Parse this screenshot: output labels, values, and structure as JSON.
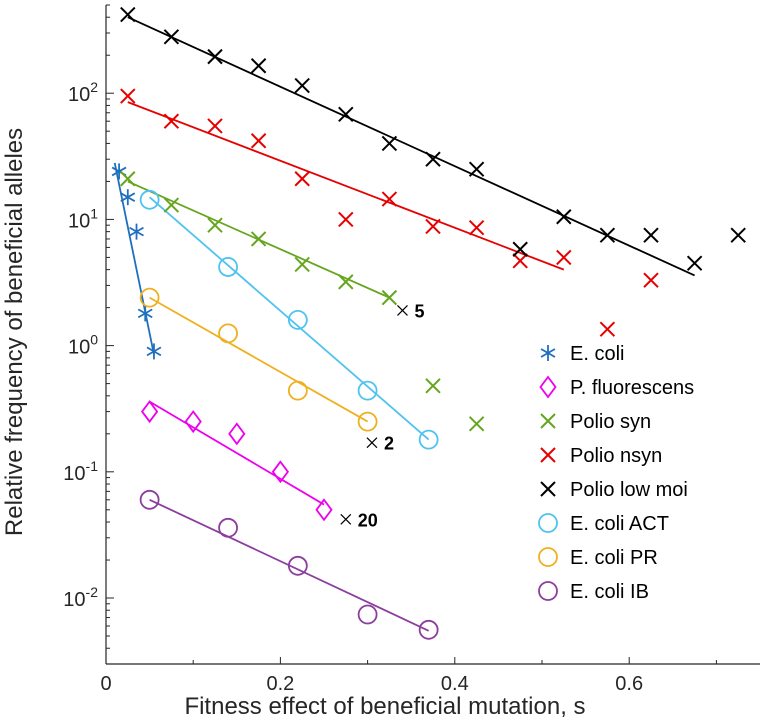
{
  "chart_data": {
    "type": "scatter",
    "xlabel": "Fitness effect of beneficial mutation, s",
    "ylabel": "Relative frequency of beneficial alleles",
    "xlim": [
      0,
      0.75
    ],
    "ylim": [
      0.003,
      500
    ],
    "yscale": "log",
    "grid": false,
    "legend_position": "bottom-right",
    "x_ticks": [
      {
        "value": 0,
        "label": "0"
      },
      {
        "value": 0.2,
        "label": "0.2"
      },
      {
        "value": 0.4,
        "label": "0.4"
      },
      {
        "value": 0.6,
        "label": "0.6"
      }
    ],
    "y_ticks": [
      {
        "value": 0.01,
        "base": "10",
        "exp": "-2"
      },
      {
        "value": 0.1,
        "base": "10",
        "exp": "-1"
      },
      {
        "value": 1,
        "base": "10",
        "exp": "0"
      },
      {
        "value": 10,
        "base": "10",
        "exp": "1"
      },
      {
        "value": 100,
        "base": "10",
        "exp": "2"
      }
    ],
    "series": [
      {
        "name": "E. coli",
        "marker": "asterisk",
        "color": "#1f6fbf",
        "x": [
          0.015,
          0.025,
          0.035,
          0.045,
          0.055
        ],
        "y": [
          24,
          15,
          8,
          1.8,
          0.9
        ],
        "fit": [
          [
            0.01,
            28
          ],
          [
            0.055,
            0.85
          ]
        ]
      },
      {
        "name": "P. fluorescens",
        "marker": "diamond",
        "color": "#ee00ee",
        "x": [
          0.05,
          0.1,
          0.15,
          0.2,
          0.25
        ],
        "y": [
          0.3,
          0.25,
          0.2,
          0.1,
          0.05
        ],
        "fit": [
          [
            0.05,
            0.36
          ],
          [
            0.25,
            0.055
          ]
        ]
      },
      {
        "name": "Polio syn",
        "marker": "x",
        "color": "#66a61e",
        "x": [
          0.025,
          0.075,
          0.125,
          0.175,
          0.225,
          0.275,
          0.325,
          0.375,
          0.425
        ],
        "y": [
          21,
          13,
          9,
          7,
          4.4,
          3.2,
          2.4,
          0.48,
          0.24
        ],
        "fit": [
          [
            0.025,
            20
          ],
          [
            0.325,
            2.4
          ]
        ]
      },
      {
        "name": "Polio nsyn",
        "marker": "x",
        "color": "#e60000",
        "x": [
          0.025,
          0.075,
          0.125,
          0.175,
          0.225,
          0.275,
          0.325,
          0.375,
          0.425,
          0.475,
          0.525,
          0.575,
          0.625
        ],
        "y": [
          95,
          60,
          55,
          42,
          21,
          10,
          14.5,
          8.8,
          8.6,
          4.7,
          5,
          1.35,
          3.3
        ],
        "fit": [
          [
            0.025,
            85
          ],
          [
            0.525,
            4.0
          ]
        ]
      },
      {
        "name": "Polio low moi",
        "marker": "x",
        "color": "#000000",
        "x": [
          0.025,
          0.075,
          0.125,
          0.175,
          0.225,
          0.275,
          0.325,
          0.375,
          0.425,
          0.475,
          0.525,
          0.575,
          0.625,
          0.675,
          0.725
        ],
        "y": [
          420,
          280,
          195,
          165,
          115,
          68,
          40,
          30,
          25,
          5.8,
          10.5,
          7.5,
          7.5,
          4.5,
          7.5
        ],
        "fit": [
          [
            0.025,
            400
          ],
          [
            0.675,
            3.6
          ]
        ]
      },
      {
        "name": "E. coli ACT",
        "marker": "circle",
        "color": "#4fc3f0",
        "x": [
          0.05,
          0.14,
          0.22,
          0.3,
          0.37
        ],
        "y": [
          14.3,
          4.2,
          1.6,
          0.44,
          0.18
        ],
        "fit": [
          [
            0.05,
            15
          ],
          [
            0.37,
            0.18
          ]
        ]
      },
      {
        "name": "E. coli PR",
        "marker": "circle",
        "color": "#f0b01e",
        "x": [
          0.05,
          0.14,
          0.22,
          0.3
        ],
        "y": [
          2.4,
          1.25,
          0.44,
          0.25
        ],
        "fit": [
          [
            0.05,
            2.4
          ],
          [
            0.3,
            0.25
          ]
        ]
      },
      {
        "name": "E. coli IB",
        "marker": "circle",
        "color": "#8c3d9e",
        "x": [
          0.05,
          0.14,
          0.22,
          0.3,
          0.37
        ],
        "y": [
          0.06,
          0.036,
          0.018,
          0.0074,
          0.0056
        ],
        "fit": [
          [
            0.05,
            0.06
          ],
          [
            0.37,
            0.0055
          ]
        ]
      }
    ],
    "annotations": [
      {
        "text": "5",
        "x": 0.34,
        "y": 1.9
      },
      {
        "text": "2",
        "x": 0.305,
        "y": 0.17
      },
      {
        "text": "20",
        "x": 0.275,
        "y": 0.042
      }
    ]
  }
}
